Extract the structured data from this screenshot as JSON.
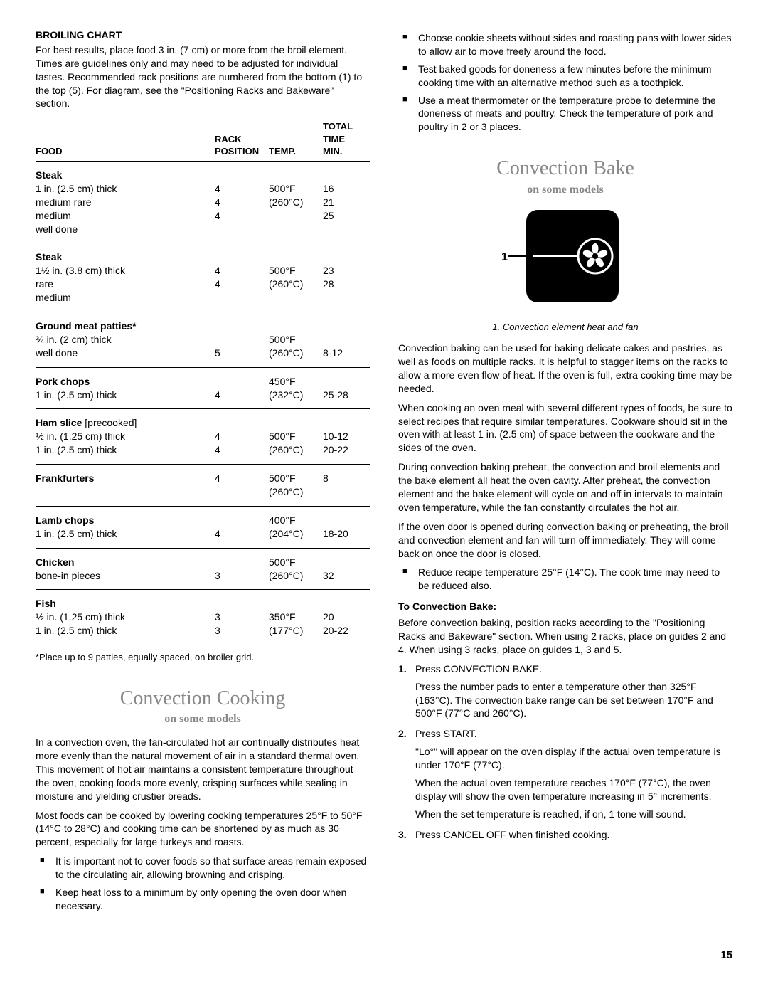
{
  "left": {
    "chartTitle": "Broiling Chart",
    "chartIntro": "For best results, place food 3 in. (7 cm) or more from the broil element. Times are guidelines only and may need to be adjusted for individual tastes. Recommended rack positions are numbered from the bottom (1) to the top (5). For diagram, see the \"Positioning Racks and Bakeware\" section.",
    "headers": {
      "food": "Food",
      "rack": "Rack Position",
      "temp": "Temp.",
      "time": "Total Time Min."
    },
    "rows": [
      {
        "food": "Steak",
        "lines": [
          "1 in. (2.5 cm) thick",
          "medium rare",
          "medium",
          "well done"
        ],
        "rack": [
          "",
          "4",
          "4",
          "4"
        ],
        "temp": [
          "",
          "500°F",
          "(260°C)",
          ""
        ],
        "time": [
          "",
          "16",
          "21",
          "25"
        ]
      },
      {
        "food": "Steak",
        "lines": [
          "1½ in. (3.8 cm) thick",
          "rare",
          "medium"
        ],
        "rack": [
          "",
          "4",
          "4"
        ],
        "temp": [
          "",
          "500°F",
          "(260°C)"
        ],
        "time": [
          "",
          "23",
          "28"
        ]
      },
      {
        "food": "Ground meat patties*",
        "lines": [
          "¾ in. (2 cm) thick",
          "well done"
        ],
        "rack": [
          "",
          "",
          "5"
        ],
        "temp": [
          "",
          "500°F",
          "(260°C)"
        ],
        "time": [
          "",
          "",
          "8-12"
        ]
      },
      {
        "food": "Pork chops",
        "lines": [
          "1 in. (2.5 cm) thick"
        ],
        "rack": [
          "",
          "4"
        ],
        "temp": [
          "450°F",
          "(232°C)"
        ],
        "time": [
          "",
          "25-28"
        ]
      },
      {
        "food": "Ham slice",
        "extra": " [precooked]",
        "lines": [
          "½ in. (1.25 cm) thick",
          "1 in. (2.5 cm) thick"
        ],
        "rack": [
          "",
          "4",
          "4"
        ],
        "temp": [
          "",
          "500°F",
          "(260°C)"
        ],
        "time": [
          "",
          "10-12",
          "20-22"
        ]
      },
      {
        "food": "Frankfurters",
        "lines": [],
        "rack": [
          "4"
        ],
        "temp": [
          "500°F",
          "(260°C)"
        ],
        "time": [
          "8"
        ]
      },
      {
        "food": "Lamb chops",
        "lines": [
          "1 in. (2.5 cm) thick"
        ],
        "rack": [
          "",
          "4"
        ],
        "temp": [
          "400°F",
          "(204°C)"
        ],
        "time": [
          "",
          "18-20"
        ]
      },
      {
        "food": "Chicken",
        "lines": [
          "bone-in pieces"
        ],
        "rack": [
          "",
          "3"
        ],
        "temp": [
          "500°F",
          "(260°C)"
        ],
        "time": [
          "",
          "32"
        ]
      },
      {
        "food": "Fish",
        "lines": [
          "½ in. (1.25 cm) thick",
          "1 in. (2.5 cm) thick"
        ],
        "rack": [
          "",
          "3",
          "3"
        ],
        "temp": [
          "",
          "350°F",
          "(177°C)"
        ],
        "time": [
          "",
          "20",
          "20-22"
        ]
      }
    ],
    "footnote": "*Place up to 9 patties, equally spaced, on broiler grid.",
    "convCookTitle": "Convection Cooking",
    "onSomeModels": "on some models",
    "convCookP1": "In a convection oven, the fan-circulated hot air continually distributes heat more evenly than the natural movement of air in a standard thermal oven. This movement of hot air maintains a consistent temperature throughout the oven, cooking foods more evenly, crisping surfaces while sealing in moisture and yielding crustier breads.",
    "convCookP2": "Most foods can be cooked by lowering cooking temperatures 25°F to 50°F (14°C to 28°C) and cooking time can be shortened by as much as 30 percent, especially for large turkeys and roasts.",
    "convCookBullets": [
      "It is important not to cover foods so that surface areas remain exposed to the circulating air, allowing browning and crisping.",
      "Keep heat loss to a minimum by only opening the oven door when necessary."
    ]
  },
  "right": {
    "topBullets": [
      "Choose cookie sheets without sides and roasting pans with lower sides to allow air to move freely around the food.",
      "Test baked goods for doneness a few minutes before the minimum cooking time with an alternative method such as a toothpick.",
      "Use a meat thermometer or the temperature probe to determine the doneness of meats and poultry. Check the temperature of pork and poultry in 2 or 3 places."
    ],
    "convBakeTitle": "Convection Bake",
    "onSomeModels": "on some models",
    "illusLabel": "1",
    "illusCaption": "1. Convection element heat and fan",
    "p1": "Convection baking can be used for baking delicate cakes and pastries, as well as foods on multiple racks. It is helpful to stagger items on the racks to allow a more even flow of heat. If the oven is full, extra cooking time may be needed.",
    "p2": "When cooking an oven meal with several different types of foods, be sure to select recipes that require similar temperatures. Cookware should sit in the oven with at least 1 in. (2.5 cm) of space between the cookware and the sides of the oven.",
    "p3": "During convection baking preheat, the convection and broil elements and the bake element all heat the oven cavity. After preheat, the convection element and the bake element will cycle on and off in intervals to maintain oven temperature, while the fan constantly circulates the hot air.",
    "p4": "If the oven door is opened during convection baking or preheating, the broil and convection element and fan will turn off immediately. They will come back on once the door is closed.",
    "reduceBullet": "Reduce recipe temperature 25°F (14°C). The cook time may need to be reduced also.",
    "toConvBake": "To Convection Bake:",
    "beforeP": "Before convection baking, position racks according to the \"Positioning Racks and Bakeware\" section. When using 2 racks, place on guides 2 and 4. When using 3 racks, place on guides 1, 3 and 5.",
    "steps": [
      {
        "main": "Press CONVECTION BAKE.",
        "sub": [
          "Press the number pads to enter a temperature other than 325°F (163°C). The convection bake range can be set between 170°F and 500°F (77°C and 260°C)."
        ]
      },
      {
        "main": "Press START.",
        "sub": [
          "\"Lo°\" will appear on the oven display if the actual oven temperature is under 170°F (77°C).",
          "When the actual oven temperature reaches 170°F (77°C), the oven display will show the oven temperature increasing in 5° increments.",
          "When the set temperature is reached, if on, 1 tone will sound."
        ]
      },
      {
        "main": "Press CANCEL OFF when finished cooking.",
        "sub": []
      }
    ]
  },
  "pageNum": "15"
}
